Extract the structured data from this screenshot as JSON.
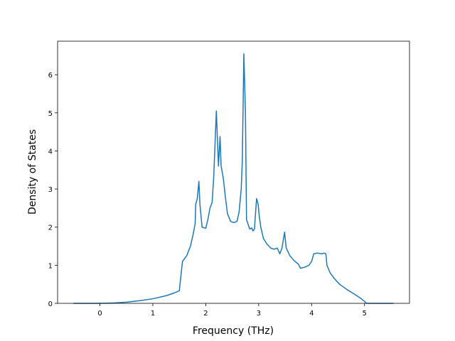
{
  "chart_data": {
    "type": "line",
    "x_label": "Frequency (THz)",
    "y_label": "Density of States",
    "x": [
      -0.5,
      0,
      0.25,
      0.5,
      0.75,
      1.0,
      1.25,
      1.4,
      1.5,
      1.56,
      1.64,
      1.71,
      1.76,
      1.8,
      1.81,
      1.84,
      1.87,
      1.89,
      1.93,
      2.0,
      2.04,
      2.08,
      2.12,
      2.15,
      2.2,
      2.24,
      2.27,
      2.29,
      2.33,
      2.37,
      2.41,
      2.47,
      2.53,
      2.59,
      2.63,
      2.67,
      2.69,
      2.72,
      2.75,
      2.77,
      2.83,
      2.87,
      2.89,
      2.92,
      2.96,
      2.99,
      3.01,
      3.04,
      3.09,
      3.16,
      3.23,
      3.29,
      3.35,
      3.4,
      3.44,
      3.49,
      3.52,
      3.59,
      3.67,
      3.75,
      3.79,
      3.87,
      3.95,
      4.0,
      4.04,
      4.11,
      4.2,
      4.24,
      4.27,
      4.29,
      4.35,
      4.43,
      4.53,
      4.67,
      4.8,
      4.93,
      5.0,
      5.04,
      5.55
    ],
    "series": [
      {
        "name": "DOS",
        "color": "#1f77b4",
        "values": [
          0,
          0,
          0.01,
          0.03,
          0.07,
          0.12,
          0.2,
          0.27,
          0.33,
          1.1,
          1.25,
          1.5,
          1.8,
          2.1,
          2.6,
          2.75,
          3.2,
          2.6,
          2.0,
          1.97,
          2.2,
          2.5,
          2.65,
          3.3,
          5.05,
          3.6,
          4.38,
          3.6,
          3.3,
          2.8,
          2.35,
          2.15,
          2.12,
          2.15,
          2.4,
          3.0,
          3.7,
          6.55,
          5.0,
          2.2,
          1.95,
          1.98,
          1.9,
          1.95,
          2.75,
          2.6,
          2.3,
          2.0,
          1.7,
          1.55,
          1.45,
          1.42,
          1.45,
          1.3,
          1.45,
          1.87,
          1.45,
          1.25,
          1.12,
          1.03,
          0.92,
          0.95,
          1.0,
          1.1,
          1.3,
          1.32,
          1.3,
          1.32,
          1.3,
          1.0,
          0.8,
          0.65,
          0.5,
          0.36,
          0.25,
          0.13,
          0.05,
          0,
          0
        ]
      }
    ],
    "xlim": [
      -0.8,
      5.85
    ],
    "ylim": [
      0,
      6.88
    ],
    "xticks": [
      0,
      1,
      2,
      3,
      4,
      5
    ],
    "yticks": [
      0,
      1,
      2,
      3,
      4,
      5,
      6
    ]
  }
}
